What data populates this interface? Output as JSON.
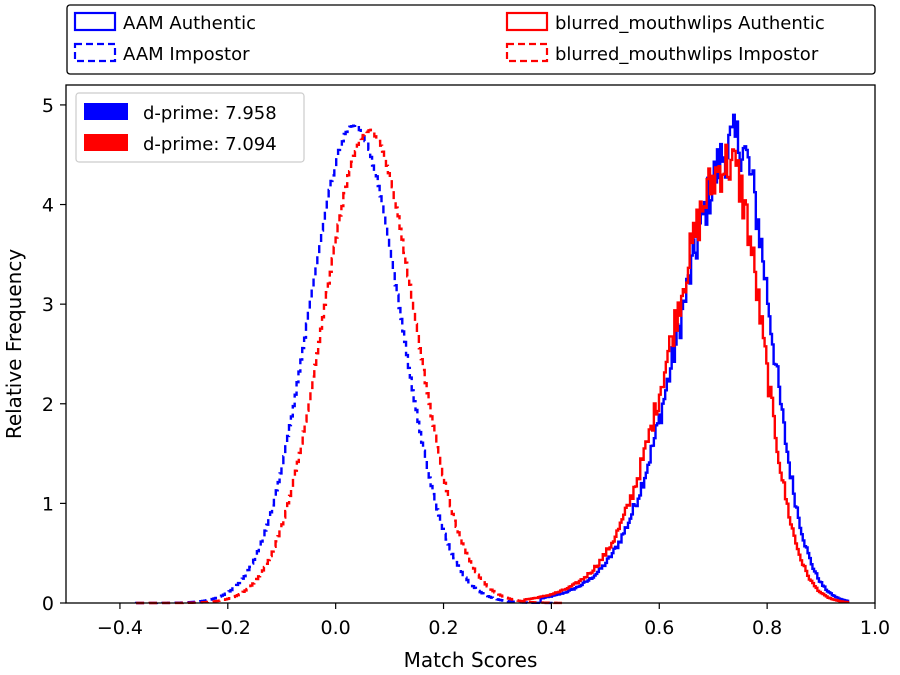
{
  "chart_data": {
    "type": "histogram",
    "xlabel": "Match Scores",
    "ylabel": "Relative Frequency",
    "xlim": [
      -0.5,
      1.0
    ],
    "ylim": [
      0,
      5.2
    ],
    "xticks": [
      -0.4,
      -0.2,
      0.0,
      0.2,
      0.4,
      0.6,
      0.8,
      1.0
    ],
    "xtick_labels": [
      "−0.4",
      "−0.2",
      "0.0",
      "0.2",
      "0.4",
      "0.6",
      "0.8",
      "1.0"
    ],
    "yticks": [
      0,
      1,
      2,
      3,
      4,
      5
    ],
    "ytick_labels": [
      "0",
      "1",
      "2",
      "3",
      "4",
      "5"
    ],
    "grid": false,
    "series_legend_placement": "above-plot",
    "series": [
      {
        "name": "AAM Authentic",
        "color": "#0000ff",
        "linestyle": "solid",
        "distribution": "genuine",
        "approx_mean": 0.745,
        "approx_peak": 4.9,
        "approx_range": [
          0.38,
          0.95
        ]
      },
      {
        "name": "AAM Impostor",
        "color": "#0000ff",
        "linestyle": "dashed",
        "distribution": "impostor",
        "approx_mean": 0.035,
        "approx_peak": 4.8,
        "approx_range": [
          -0.37,
          0.4
        ]
      },
      {
        "name": "blurred_mouthwlips Authentic",
        "color": "#ff0000",
        "linestyle": "solid",
        "distribution": "genuine",
        "approx_mean": 0.73,
        "approx_peak": 4.6,
        "approx_range": [
          0.35,
          0.95
        ]
      },
      {
        "name": "blurred_mouthwlips Impostor",
        "color": "#ff0000",
        "linestyle": "dashed",
        "distribution": "impostor",
        "approx_mean": 0.062,
        "approx_peak": 4.75,
        "approx_range": [
          -0.37,
          0.42
        ]
      }
    ],
    "dprime_legend": {
      "placement": "upper-left",
      "entries": [
        {
          "label": "d-prime: 7.958",
          "color": "#0000ff"
        },
        {
          "label": "d-prime: 7.094",
          "color": "#ff0000"
        }
      ]
    }
  }
}
